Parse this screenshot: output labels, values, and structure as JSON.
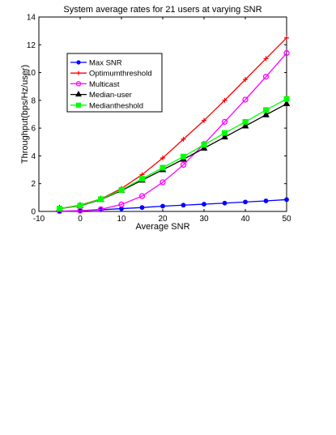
{
  "chart_data": {
    "type": "line",
    "title": "System average rates for 21 users at varying SNR",
    "xlabel": "Average SNR",
    "ylabel": "Throughput(bps/Hz/user)",
    "xlim": [
      -10,
      50
    ],
    "ylim": [
      0,
      14
    ],
    "xticks": [
      -10,
      0,
      10,
      20,
      30,
      40,
      50
    ],
    "yticks": [
      0,
      2,
      4,
      6,
      8,
      10,
      12,
      14
    ],
    "grid": false,
    "legend_position": "upper-left",
    "x": [
      -5,
      0,
      5,
      10,
      15,
      20,
      25,
      30,
      35,
      40,
      45,
      50
    ],
    "series": [
      {
        "name": "Max SNR",
        "color": "#0000ff",
        "marker": "circle",
        "values": [
          0.02,
          0.05,
          0.12,
          0.2,
          0.28,
          0.38,
          0.45,
          0.52,
          0.6,
          0.68,
          0.76,
          0.85
        ]
      },
      {
        "name": "Optimumthreshold",
        "color": "#ff0000",
        "marker": "plus",
        "values": [
          0.2,
          0.45,
          0.9,
          1.65,
          2.65,
          3.85,
          5.2,
          6.55,
          8.0,
          9.5,
          11.0,
          12.5
        ]
      },
      {
        "name": "Multicast",
        "color": "#ff00ff",
        "marker": "circle-open",
        "values": [
          0.02,
          0.05,
          0.15,
          0.5,
          1.1,
          2.1,
          3.35,
          4.85,
          6.45,
          8.05,
          9.7,
          11.4
        ]
      },
      {
        "name": "Median-user",
        "color": "#000000",
        "marker": "triangle",
        "values": [
          0.2,
          0.4,
          0.85,
          1.5,
          2.25,
          3.0,
          3.75,
          4.55,
          5.35,
          6.15,
          6.95,
          7.75
        ]
      },
      {
        "name": "Mediantheshold",
        "color": "#00ff00",
        "marker": "square",
        "values": [
          0.2,
          0.42,
          0.88,
          1.55,
          2.35,
          3.15,
          3.95,
          4.8,
          5.65,
          6.45,
          7.3,
          8.1
        ]
      }
    ]
  }
}
